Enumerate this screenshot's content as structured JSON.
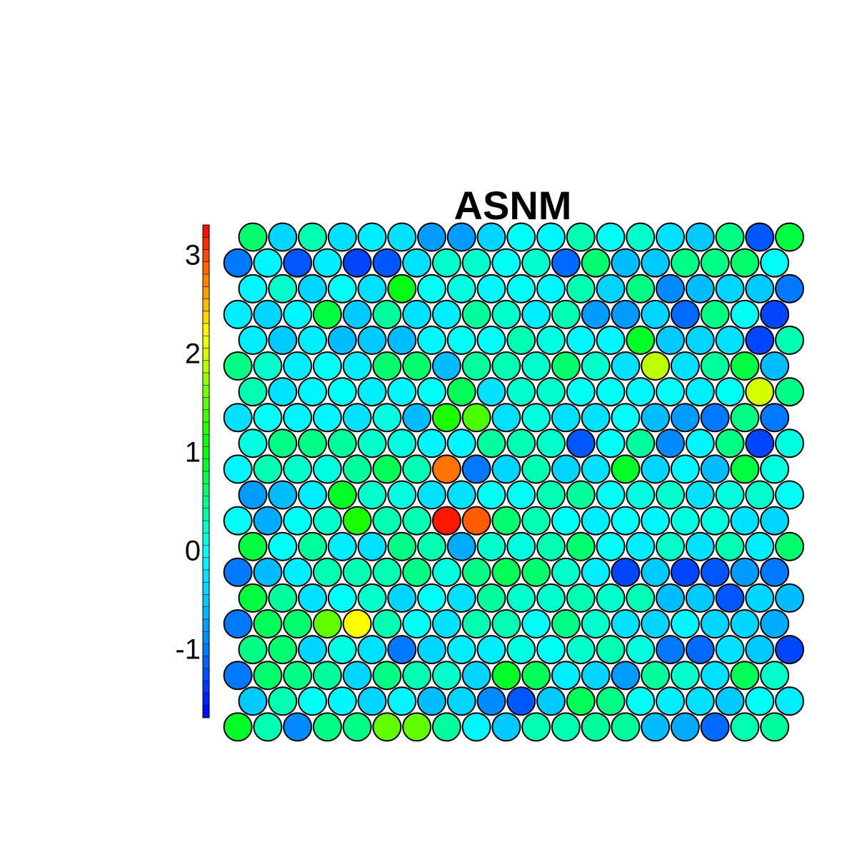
{
  "chart_data": {
    "type": "heatmap",
    "layout": "hexagonal",
    "title": "ASNM",
    "rows": 20,
    "cols": 19,
    "color_scale": {
      "min": -1.7,
      "max": 3.3,
      "palette": [
        "#0000FF",
        "#0060FF",
        "#00BFFF",
        "#00FFFF",
        "#00FF80",
        "#00FF00",
        "#80FF00",
        "#FFFF00",
        "#FF8000",
        "#FF0000"
      ],
      "ticks": [
        -1,
        0,
        1,
        2,
        3
      ],
      "tick_labels": [
        "-1",
        "0",
        "1",
        "2",
        "3"
      ]
    },
    "values": [
      [
        0.6,
        -0.4,
        0.3,
        -0.3,
        -0.2,
        -0.3,
        -0.8,
        -0.8,
        -0.4,
        0.0,
        -0.1,
        0.3,
        0.0,
        0.2,
        -0.3,
        -0.5,
        0.5,
        -1.2,
        0.8
      ],
      [
        -1.0,
        -0.1,
        -1.2,
        -0.2,
        -1.3,
        -1.2,
        -0.3,
        0.2,
        0.2,
        0.0,
        0.2,
        -1.1,
        0.6,
        -0.6,
        -0.5,
        0.5,
        0.5,
        0.6,
        0.0
      ],
      [
        -0.1,
        0.2,
        -0.4,
        0.0,
        -0.3,
        1.0,
        0.0,
        0.1,
        -0.1,
        0.0,
        -0.1,
        0.3,
        -0.4,
        0.5,
        -0.9,
        -0.6,
        -0.4,
        -0.5,
        -1.0
      ],
      [
        -0.2,
        -0.4,
        -0.1,
        0.8,
        -0.5,
        0.4,
        -0.3,
        -0.2,
        0.4,
        0.2,
        -0.2,
        0.3,
        -0.8,
        -0.8,
        -0.4,
        -1.1,
        0.5,
        0.0,
        -1.3
      ],
      [
        -0.2,
        -0.5,
        -0.2,
        -0.6,
        -0.5,
        -0.6,
        -0.1,
        0.0,
        0.0,
        0.3,
        0.1,
        -0.1,
        -0.1,
        0.9,
        -0.5,
        -0.4,
        -0.3,
        -1.3,
        0.3
      ],
      [
        0.5,
        0.2,
        -0.2,
        0.0,
        -0.2,
        0.6,
        0.6,
        -0.6,
        0.4,
        0.3,
        0.2,
        0.6,
        0.2,
        -0.3,
        1.9,
        -0.3,
        0.4,
        0.8,
        -0.6
      ],
      [
        0.3,
        -0.3,
        -0.1,
        0.0,
        -0.2,
        -0.1,
        0.0,
        0.7,
        -0.3,
        0.2,
        0.2,
        0.0,
        0.0,
        -0.1,
        0.0,
        -0.2,
        0.0,
        2.0,
        0.5
      ],
      [
        -0.3,
        0.0,
        -0.1,
        -0.1,
        -0.3,
        0.1,
        -0.6,
        1.2,
        1.4,
        -0.3,
        0.1,
        -0.3,
        -0.3,
        0.0,
        -0.6,
        -0.8,
        -1.0,
        0.5,
        -1.0
      ],
      [
        0.1,
        0.5,
        0.5,
        0.4,
        0.2,
        0.1,
        -0.1,
        -0.1,
        0.4,
        0.3,
        0.2,
        -1.2,
        0.0,
        0.4,
        -0.9,
        -0.1,
        0.5,
        -1.3,
        0.1
      ],
      [
        -0.1,
        0.3,
        0.2,
        0.1,
        0.4,
        0.7,
        0.3,
        2.8,
        -1.0,
        -0.4,
        0.3,
        -0.4,
        -0.3,
        0.9,
        -0.4,
        -0.1,
        -0.6,
        0.8,
        0.1
      ],
      [
        -0.8,
        -0.6,
        -0.2,
        0.9,
        0.2,
        0.1,
        -0.3,
        -0.3,
        0.0,
        0.0,
        0.3,
        0.4,
        0.0,
        0.1,
        0.2,
        -0.3,
        0.1,
        0.2,
        0.0
      ],
      [
        0.0,
        -0.7,
        0.0,
        0.2,
        1.2,
        0.3,
        0.3,
        3.2,
        2.9,
        0.6,
        0.3,
        0.0,
        -0.2,
        0.0,
        -0.1,
        0.1,
        0.1,
        -0.3,
        -0.4
      ],
      [
        0.8,
        0.0,
        0.4,
        -0.2,
        -0.3,
        0.5,
        0.3,
        -0.7,
        0.2,
        0.1,
        0.3,
        0.6,
        0.0,
        -0.2,
        0.2,
        -0.3,
        0.3,
        -0.2,
        0.6
      ],
      [
        -1.0,
        -0.6,
        -0.2,
        0.3,
        0.3,
        0.3,
        0.5,
        0.1,
        0.5,
        0.7,
        0.6,
        0.2,
        -0.2,
        -1.3,
        -0.5,
        -1.3,
        -1.2,
        -0.8,
        -1.0
      ],
      [
        0.8,
        0.4,
        -0.3,
        0.0,
        0.2,
        -0.4,
        0.0,
        -0.3,
        0.4,
        0.2,
        0.2,
        0.3,
        0.2,
        0.3,
        -0.6,
        -0.5,
        -1.2,
        -0.4,
        -0.6
      ],
      [
        -1.0,
        0.7,
        0.6,
        1.5,
        2.2,
        0.3,
        0.0,
        -0.3,
        0.3,
        0.3,
        0.0,
        0.5,
        0.2,
        -0.3,
        -0.4,
        -0.1,
        -0.4,
        -0.4,
        -0.7
      ],
      [
        0.5,
        0.6,
        -0.4,
        0.1,
        -0.3,
        -1.0,
        -0.4,
        -0.2,
        -0.2,
        0.1,
        0.0,
        0.2,
        0.3,
        0.1,
        -1.0,
        -1.1,
        -0.3,
        -0.5,
        -1.3
      ],
      [
        -1.0,
        0.6,
        0.5,
        0.4,
        -0.4,
        0.5,
        0.3,
        0.2,
        -0.4,
        0.9,
        0.7,
        -0.2,
        -0.4,
        -0.8,
        0.4,
        0.2,
        -0.3,
        0.7,
        0.2
      ],
      [
        -0.5,
        0.3,
        0.0,
        -0.1,
        -0.4,
        -0.1,
        -0.6,
        -0.4,
        -0.9,
        -1.2,
        -0.5,
        0.7,
        0.5,
        0.0,
        -0.2,
        -0.3,
        -0.5,
        0.0,
        -0.2
      ],
      [
        0.9,
        0.3,
        -0.9,
        0.5,
        0.5,
        1.5,
        1.5,
        0.4,
        -0.1,
        -0.5,
        0.3,
        0.3,
        0.4,
        0.4,
        -0.6,
        -0.7,
        -1.1,
        0.3,
        0.4
      ]
    ]
  }
}
